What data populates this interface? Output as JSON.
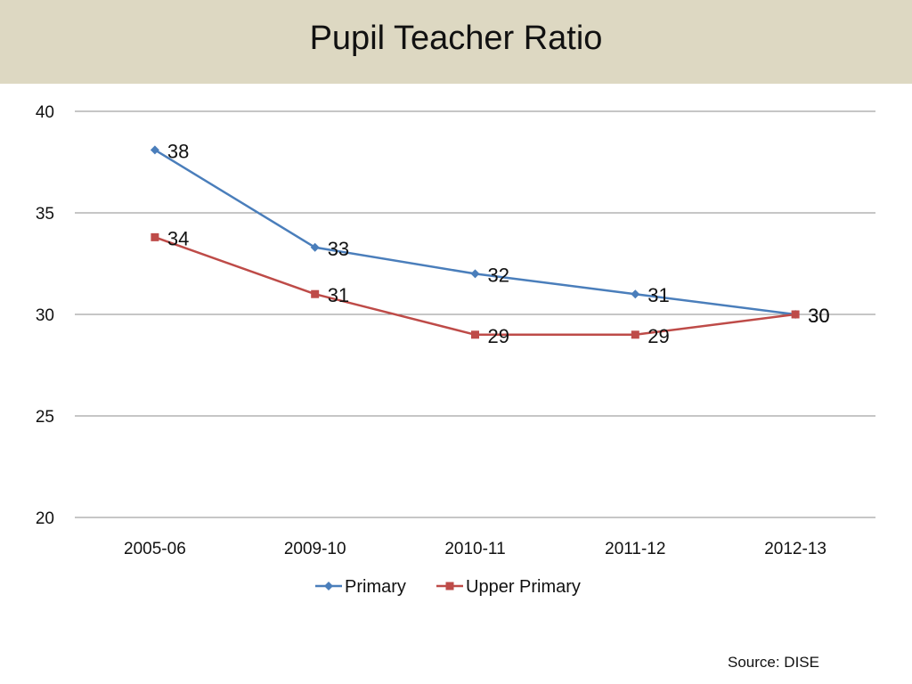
{
  "slide": {
    "title": "Pupil Teacher Ratio",
    "source": "Source: DISE"
  },
  "chart_data": {
    "type": "line",
    "title": "Pupil Teacher Ratio",
    "categories": [
      "2005-06",
      "2009-10",
      "2010-11",
      "2011-12",
      "2012-13"
    ],
    "series": [
      {
        "name": "Primary",
        "values": [
          38,
          33,
          32,
          31,
          30
        ],
        "plot_values": [
          38.1,
          33.3,
          32,
          31,
          30
        ],
        "color": "#4a7ebb",
        "marker": "diamond"
      },
      {
        "name": "Upper Primary",
        "values": [
          34,
          31,
          29,
          29,
          30
        ],
        "plot_values": [
          33.8,
          31,
          29,
          29,
          30
        ],
        "color": "#be4b48",
        "marker": "square"
      }
    ],
    "yticks": [
      20,
      25,
      30,
      35,
      40
    ],
    "ylim": [
      20,
      40
    ],
    "xlabel": "",
    "ylabel": "",
    "grid": true,
    "legend": "bottom",
    "data_labels": true
  }
}
